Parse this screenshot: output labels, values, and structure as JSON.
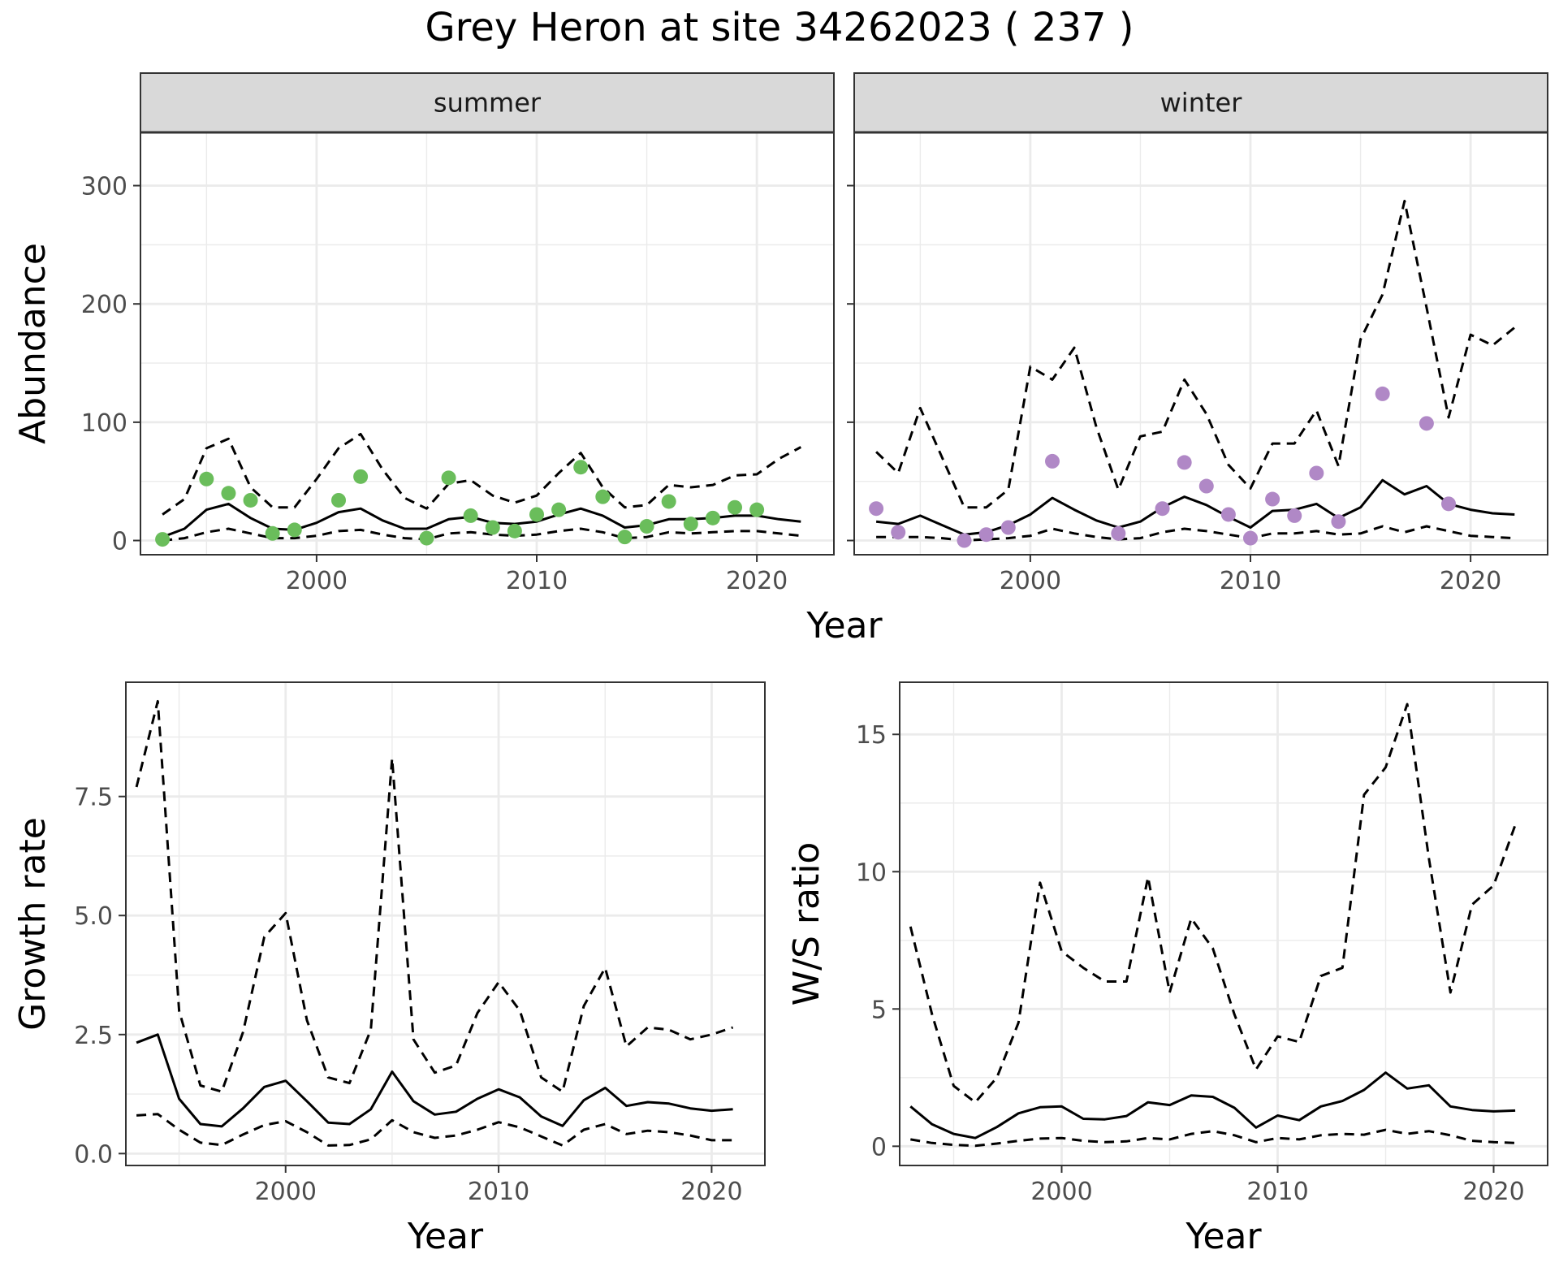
{
  "title": "Grey Heron at site 34262023 ( 237 )",
  "colors": {
    "summer_points": "#6abd5b",
    "winter_points": "#b088c6",
    "lines": "#000000",
    "grid": "#ebebeb",
    "strip_bg": "#d9d9d9",
    "panel_border": "#333333"
  },
  "chart_data": [
    {
      "type": "line",
      "facet": "summer",
      "xlabel": "Year",
      "ylabel": "Abundance",
      "xlim": [
        1992,
        2023.5
      ],
      "ylim": [
        -12,
        345
      ],
      "xticks": [
        2000,
        2010,
        2020
      ],
      "yticks": [
        0,
        100,
        200,
        300
      ],
      "x": [
        1993,
        1994,
        1995,
        1996,
        1997,
        1998,
        1999,
        2000,
        2001,
        2002,
        2003,
        2004,
        2005,
        2006,
        2007,
        2008,
        2009,
        2010,
        2011,
        2012,
        2013,
        2014,
        2015,
        2016,
        2017,
        2018,
        2019,
        2020,
        2021,
        2022
      ],
      "series": [
        {
          "role": "estimate",
          "style": "solid",
          "values": [
            3,
            10,
            26,
            31,
            19,
            10,
            9,
            15,
            24,
            27,
            17,
            10,
            10,
            18,
            20,
            15,
            14,
            16,
            22,
            27,
            21,
            11,
            13,
            18,
            18,
            19,
            21,
            21,
            18,
            16
          ]
        },
        {
          "role": "upper",
          "style": "dashed",
          "values": [
            22,
            35,
            78,
            86,
            45,
            28,
            28,
            52,
            78,
            90,
            60,
            36,
            27,
            48,
            51,
            38,
            32,
            38,
            57,
            74,
            45,
            28,
            30,
            47,
            45,
            47,
            55,
            56,
            69,
            79
          ]
        },
        {
          "role": "lower",
          "style": "dashed",
          "values": [
            0,
            2,
            7,
            10,
            6,
            2,
            2,
            4,
            8,
            9,
            5,
            2,
            1,
            6,
            7,
            5,
            4,
            5,
            8,
            10,
            7,
            2,
            3,
            7,
            6,
            7,
            8,
            8,
            6,
            4
          ]
        },
        {
          "role": "observed",
          "style": "points",
          "x": [
            1993,
            1995,
            1996,
            1997,
            1998,
            1999,
            2001,
            2002,
            2005,
            2006,
            2007,
            2008,
            2009,
            2010,
            2011,
            2012,
            2013,
            2014,
            2015,
            2016,
            2017,
            2018,
            2019,
            2020
          ],
          "values": [
            1,
            52,
            40,
            34,
            6,
            9,
            34,
            54,
            2,
            53,
            21,
            11,
            8,
            22,
            26,
            62,
            37,
            3,
            12,
            33,
            14,
            19,
            28,
            26
          ]
        }
      ]
    },
    {
      "type": "line",
      "facet": "winter",
      "xlabel": "Year",
      "ylabel": "Abundance",
      "xlim": [
        1992,
        2023.5
      ],
      "ylim": [
        -12,
        345
      ],
      "xticks": [
        2000,
        2010,
        2020
      ],
      "yticks": [
        0,
        100,
        200,
        300
      ],
      "x": [
        1993,
        1994,
        1995,
        1996,
        1997,
        1998,
        1999,
        2000,
        2001,
        2002,
        2003,
        2004,
        2005,
        2006,
        2007,
        2008,
        2009,
        2010,
        2011,
        2012,
        2013,
        2014,
        2015,
        2016,
        2017,
        2018,
        2019,
        2020,
        2021,
        2022
      ],
      "series": [
        {
          "role": "estimate",
          "style": "solid",
          "values": [
            16,
            14,
            21,
            13,
            5,
            7,
            13,
            22,
            36,
            26,
            17,
            11,
            16,
            28,
            37,
            30,
            20,
            11,
            25,
            26,
            31,
            19,
            28,
            51,
            39,
            46,
            31,
            26,
            23,
            22
          ]
        },
        {
          "role": "upper",
          "style": "dashed",
          "values": [
            75,
            57,
            112,
            70,
            28,
            28,
            43,
            147,
            136,
            163,
            96,
            43,
            88,
            92,
            136,
            107,
            64,
            44,
            82,
            82,
            110,
            63,
            170,
            208,
            287,
            197,
            104,
            174,
            165,
            180
          ]
        },
        {
          "role": "lower",
          "style": "dashed",
          "values": [
            3,
            3,
            3,
            2,
            0,
            1,
            2,
            4,
            10,
            6,
            3,
            1,
            2,
            7,
            10,
            8,
            5,
            2,
            6,
            6,
            8,
            5,
            6,
            12,
            7,
            12,
            8,
            4,
            3,
            2
          ]
        },
        {
          "role": "observed",
          "style": "points",
          "x": [
            1993,
            1994,
            1997,
            1998,
            1999,
            2001,
            2004,
            2006,
            2007,
            2008,
            2009,
            2010,
            2011,
            2012,
            2013,
            2014,
            2016,
            2018,
            2019
          ],
          "values": [
            27,
            7,
            0,
            5,
            11,
            67,
            6,
            27,
            66,
            46,
            22,
            2,
            35,
            21,
            57,
            16,
            124,
            99,
            31
          ]
        }
      ]
    },
    {
      "type": "line",
      "xlabel": "Year",
      "ylabel": "Growth rate",
      "xlim": [
        1992.5,
        2022.5
      ],
      "ylim": [
        -0.25,
        9.9
      ],
      "xticks": [
        2000,
        2010,
        2020
      ],
      "yticks": [
        0.0,
        2.5,
        5.0,
        7.5
      ],
      "ytick_labels": [
        "0.0",
        "2.5",
        "5.0",
        "7.5"
      ],
      "x": [
        1993,
        1994,
        1995,
        1996,
        1997,
        1998,
        1999,
        2000,
        2001,
        2002,
        2003,
        2004,
        2005,
        2006,
        2007,
        2008,
        2009,
        2010,
        2011,
        2012,
        2013,
        2014,
        2015,
        2016,
        2017,
        2018,
        2019,
        2020,
        2021
      ],
      "series": [
        {
          "role": "estimate",
          "style": "solid",
          "values": [
            2.33,
            2.5,
            1.15,
            0.62,
            0.57,
            0.95,
            1.4,
            1.53,
            1.1,
            0.65,
            0.62,
            0.93,
            1.72,
            1.1,
            0.82,
            0.88,
            1.15,
            1.35,
            1.18,
            0.78,
            0.58,
            1.12,
            1.38,
            1.0,
            1.08,
            1.05,
            0.95,
            0.9,
            0.93
          ]
        },
        {
          "role": "upper",
          "style": "dashed",
          "values": [
            7.7,
            9.5,
            3.0,
            1.43,
            1.3,
            2.55,
            4.55,
            5.05,
            2.8,
            1.6,
            1.48,
            2.6,
            8.3,
            2.4,
            1.7,
            1.85,
            2.95,
            3.6,
            3.0,
            1.6,
            1.3,
            3.1,
            3.9,
            2.25,
            2.65,
            2.6,
            2.4,
            2.5,
            2.65
          ]
        },
        {
          "role": "lower",
          "style": "dashed",
          "values": [
            0.8,
            0.83,
            0.5,
            0.23,
            0.18,
            0.4,
            0.6,
            0.68,
            0.45,
            0.17,
            0.18,
            0.3,
            0.7,
            0.45,
            0.33,
            0.38,
            0.5,
            0.66,
            0.55,
            0.36,
            0.17,
            0.5,
            0.62,
            0.41,
            0.48,
            0.45,
            0.38,
            0.28,
            0.28
          ]
        }
      ]
    },
    {
      "type": "line",
      "xlabel": "Year",
      "ylabel": "W/S ratio",
      "xlim": [
        1992.5,
        2022.5
      ],
      "ylim": [
        -0.7,
        16.9
      ],
      "xticks": [
        2000,
        2010,
        2020
      ],
      "yticks": [
        0,
        5,
        10,
        15
      ],
      "x": [
        1993,
        1994,
        1995,
        1996,
        1997,
        1998,
        1999,
        2000,
        2001,
        2002,
        2003,
        2004,
        2005,
        2006,
        2007,
        2008,
        2009,
        2010,
        2011,
        2012,
        2013,
        2014,
        2015,
        2016,
        2017,
        2018,
        2019,
        2020,
        2021
      ],
      "series": [
        {
          "role": "estimate",
          "style": "solid",
          "values": [
            1.45,
            0.8,
            0.45,
            0.3,
            0.7,
            1.2,
            1.42,
            1.45,
            1.0,
            0.98,
            1.1,
            1.6,
            1.5,
            1.85,
            1.8,
            1.4,
            0.68,
            1.12,
            0.95,
            1.45,
            1.65,
            2.05,
            2.68,
            2.1,
            2.22,
            1.45,
            1.32,
            1.27,
            1.3
          ]
        },
        {
          "role": "upper",
          "style": "dashed",
          "values": [
            8.0,
            4.8,
            2.2,
            1.6,
            2.5,
            4.5,
            9.6,
            7.1,
            6.5,
            6.0,
            6.0,
            9.8,
            5.6,
            8.3,
            7.2,
            4.8,
            2.8,
            4.0,
            3.8,
            6.2,
            6.5,
            12.8,
            13.8,
            16.1,
            10.5,
            5.6,
            8.8,
            9.5,
            11.7
          ]
        },
        {
          "role": "lower",
          "style": "dashed",
          "values": [
            0.25,
            0.12,
            0.05,
            0.02,
            0.1,
            0.2,
            0.28,
            0.3,
            0.2,
            0.15,
            0.18,
            0.3,
            0.25,
            0.45,
            0.55,
            0.4,
            0.15,
            0.3,
            0.25,
            0.4,
            0.45,
            0.42,
            0.6,
            0.45,
            0.55,
            0.4,
            0.2,
            0.15,
            0.12
          ]
        }
      ]
    }
  ]
}
